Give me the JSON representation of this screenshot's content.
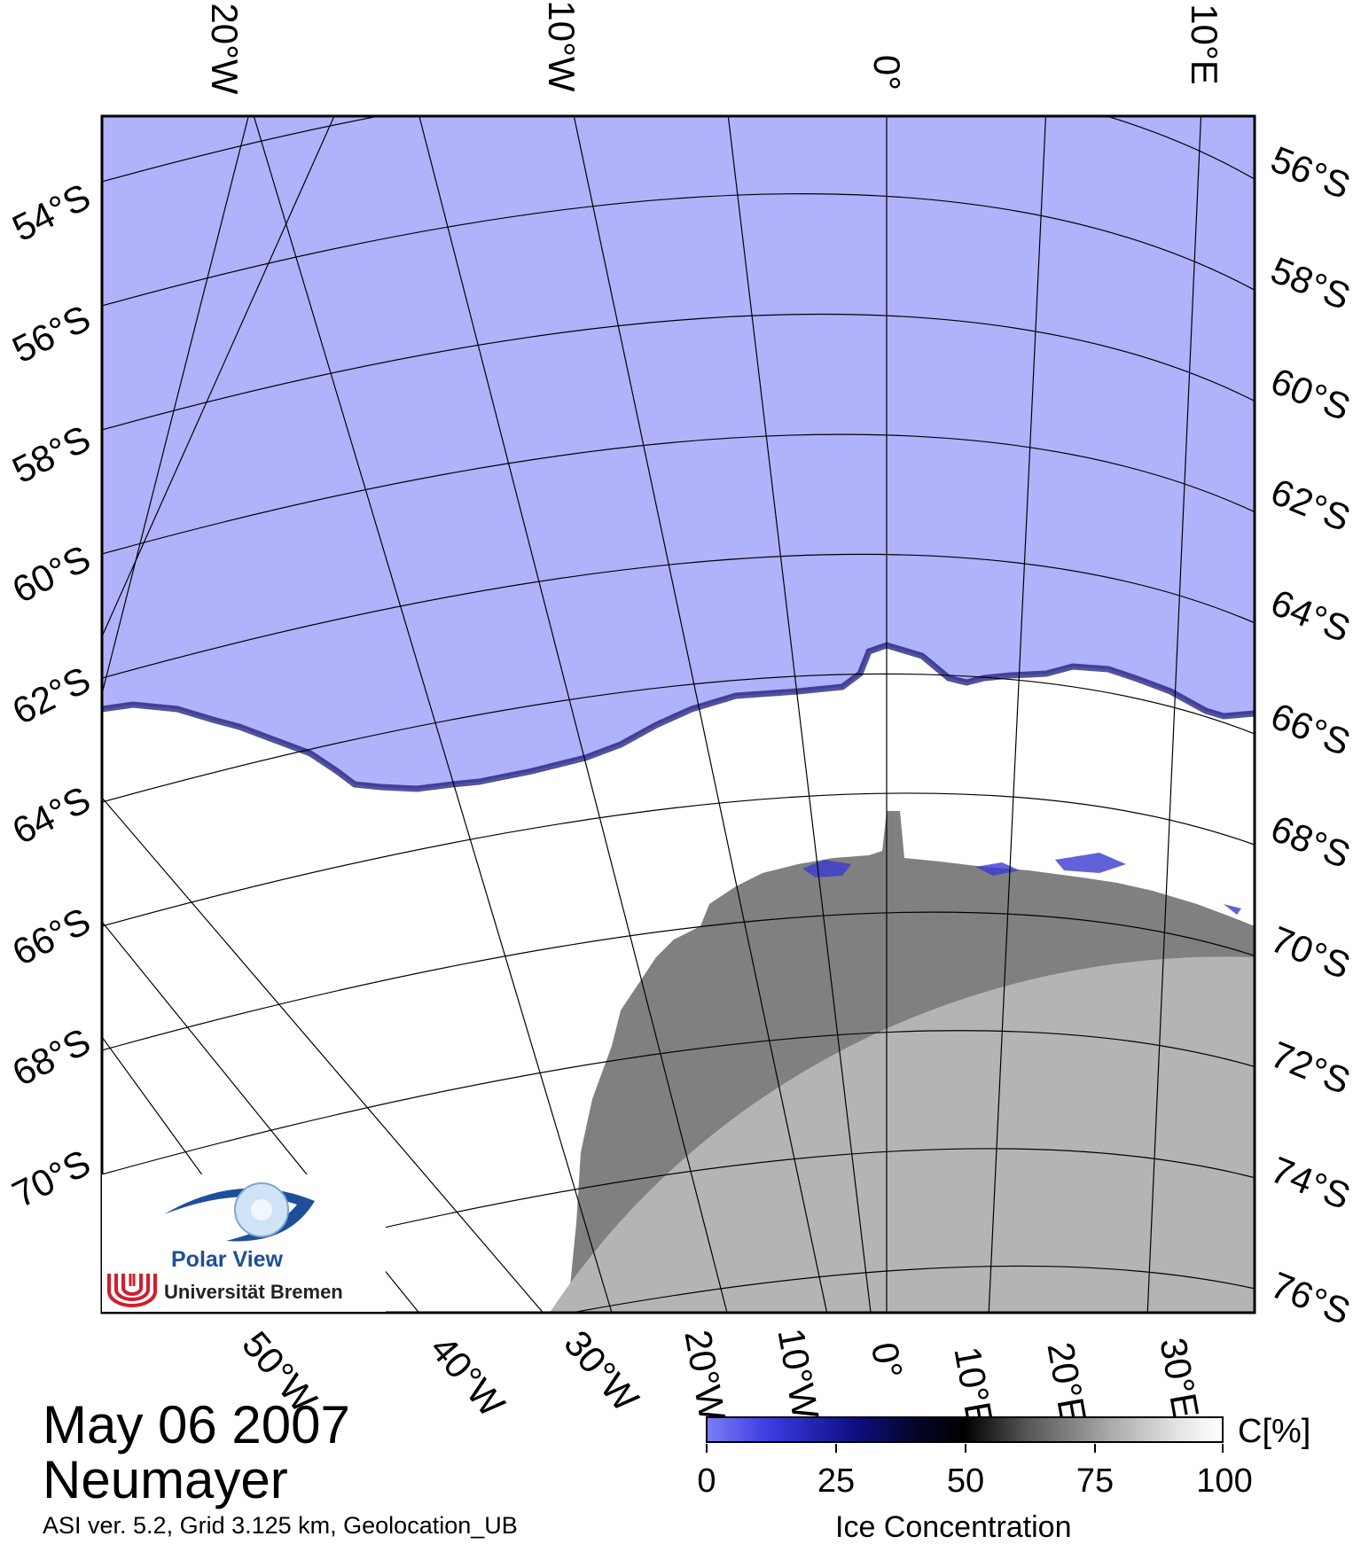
{
  "map": {
    "top_lon_labels": [
      "20°W",
      "10°W",
      "0°",
      "10°E"
    ],
    "bottom_lon_labels": [
      "50°W",
      "40°W",
      "30°W",
      "20°W",
      "10°W",
      "0°",
      "10°E",
      "20°E",
      "30°E"
    ],
    "left_lat_labels": [
      "54°S",
      "56°S",
      "58°S",
      "60°S",
      "62°S",
      "64°S",
      "66°S",
      "68°S",
      "70°S"
    ],
    "right_lat_labels": [
      "56°S",
      "58°S",
      "60°S",
      "62°S",
      "64°S",
      "66°S",
      "68°S",
      "70°S",
      "72°S",
      "74°S",
      "76°S"
    ],
    "colors": {
      "open_water": "#b1b2fc",
      "sea_ice": "#ffffff",
      "ice_shelf": "#808080",
      "land": "#b4b4b4",
      "graticule": "#000000"
    }
  },
  "title": {
    "date": "May 06 2007",
    "station": "Neumayer",
    "note": "ASI ver. 5.2,  Grid 3.125 km, Geolocation_UB"
  },
  "colorbar": {
    "ticks": [
      "0",
      "25",
      "50",
      "75",
      "100"
    ],
    "unit": "C[%]",
    "title": "Ice Concentration",
    "range": [
      0,
      100
    ]
  },
  "logo": {
    "project": "Polar View",
    "university": "Universität Bremen"
  }
}
